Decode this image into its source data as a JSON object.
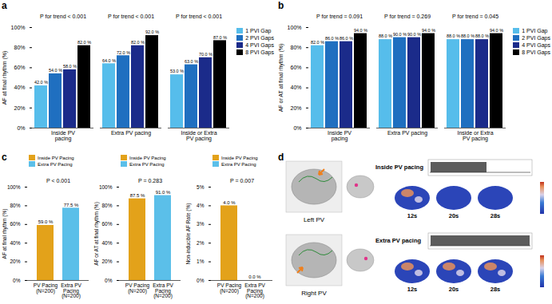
{
  "chart_data": [
    {
      "label": "a",
      "type": "bar",
      "categories": [
        "Inside PV pacing",
        "Extra PV pacing",
        "Inside or Extra PV pacing"
      ],
      "series": [
        {
          "name": "1 PVI Gap",
          "color": "#56bdeb",
          "values": [
            42,
            64,
            53
          ],
          "value_labels": [
            "42.0 %",
            "64.0 %",
            "53.0 %"
          ]
        },
        {
          "name": "2 PVI Gaps",
          "color": "#1f6fc0",
          "values": [
            54,
            72,
            63
          ],
          "value_labels": [
            "54.0 %",
            "72.0 %",
            "63.0 %"
          ]
        },
        {
          "name": "4 PVI Gaps",
          "color": "#1b2b8a",
          "values": [
            58,
            82,
            70
          ],
          "value_labels": [
            "58.0 %",
            "82.0 %",
            "70.0 %"
          ]
        },
        {
          "name": "8 PVI Gaps",
          "color": "#000000",
          "values": [
            82,
            92,
            87
          ],
          "value_labels": [
            "82.0 %",
            "92.0 %",
            "87.0 %"
          ]
        }
      ],
      "ylabel": "AF at final rhythm (%)",
      "ylim": [
        0,
        100
      ],
      "yticks": [
        {
          "value": 0,
          "label": "0%"
        },
        {
          "value": 20,
          "label": "20%"
        },
        {
          "value": 40,
          "label": "40%"
        },
        {
          "value": 60,
          "label": "60%"
        },
        {
          "value": 80,
          "label": "80%"
        },
        {
          "value": 100,
          "label": "100%"
        }
      ],
      "annotations": [
        "P for trend < 0.001",
        "P for trend < 0.001",
        "P for trend < 0.001"
      ],
      "data_labels": true,
      "legend": "top-right"
    },
    {
      "label": "b",
      "type": "bar",
      "categories": [
        "Inside PV pacing",
        "Extra PV pacing",
        "Inside or Extra PV pacing"
      ],
      "series": [
        {
          "name": "1 PVI Gap",
          "color": "#56bdeb",
          "values": [
            82,
            88,
            88
          ],
          "value_labels": [
            "82.0 %",
            "88.0 %",
            "88.0 %"
          ]
        },
        {
          "name": "2 PVI Gaps",
          "color": "#1f6fc0",
          "values": [
            86,
            90,
            88
          ],
          "value_labels": [
            "86.0 %",
            "90.0 %",
            "88.0 %"
          ]
        },
        {
          "name": "4 PVI Gaps",
          "color": "#1b2b8a",
          "values": [
            86,
            90,
            88
          ],
          "value_labels": [
            "86.0 %",
            "90.0 %",
            "88.0 %"
          ]
        },
        {
          "name": "8 PVI Gaps",
          "color": "#000000",
          "values": [
            94,
            94,
            94
          ],
          "value_labels": [
            "94.0 %",
            "94.0 %",
            "94.0 %"
          ]
        }
      ],
      "ylabel": "AF or AT at final rhythm (%)",
      "ylim": [
        0,
        100
      ],
      "yticks": [
        {
          "value": 0,
          "label": "0%"
        },
        {
          "value": 20,
          "label": "20%"
        },
        {
          "value": 40,
          "label": "40%"
        },
        {
          "value": 60,
          "label": "60%"
        },
        {
          "value": 80,
          "label": "80%"
        },
        {
          "value": 100,
          "label": "100%"
        }
      ],
      "annotations": [
        "P for trend = 0.091",
        "P for trend = 0.269",
        "P for trend = 0.045"
      ],
      "data_labels": true,
      "legend": "top-right"
    },
    {
      "label": "c",
      "type": "bar",
      "categories": [
        "PV Pacing (N=200)",
        "Extra PV Pacing (N=200)"
      ],
      "series": [
        {
          "name": "Inside PV Pacing",
          "color": "#e3a21a",
          "values": [
            59,
            null
          ],
          "value_labels": [
            "59.0 %",
            null
          ]
        },
        {
          "name": "Extra PV Pacing",
          "color": "#5bbfe9",
          "values": [
            null,
            77.5
          ],
          "value_labels": [
            null,
            "77.5 %"
          ]
        }
      ],
      "ylabel": "AF at final rhythm (%)",
      "ylim": [
        0,
        100
      ],
      "yticks": [
        {
          "value": 0,
          "label": "0%"
        },
        {
          "value": 20,
          "label": "20%"
        },
        {
          "value": 40,
          "label": "40%"
        },
        {
          "value": 60,
          "label": "60%"
        },
        {
          "value": 80,
          "label": "80%"
        },
        {
          "value": 100,
          "label": "100%"
        }
      ],
      "annotations": [
        "P < 0.001"
      ],
      "data_labels": true,
      "legend": "top"
    },
    {
      "type": "bar",
      "categories": [
        "PV Pacing (N=200)",
        "Extra PV Pacing (N=200)"
      ],
      "series": [
        {
          "name": "Inside PV Pacing",
          "color": "#e3a21a",
          "values": [
            87.5,
            null
          ],
          "value_labels": [
            "87.5 %",
            null
          ]
        },
        {
          "name": "Extra PV Pacing",
          "color": "#5bbfe9",
          "values": [
            null,
            91
          ],
          "value_labels": [
            null,
            "91.0 %"
          ]
        }
      ],
      "ylabel": "AF or AT at final rhythm (%)",
      "ylim": [
        0,
        100
      ],
      "yticks": [
        {
          "value": 0,
          "label": "0%"
        },
        {
          "value": 20,
          "label": "20%"
        },
        {
          "value": 40,
          "label": "40%"
        },
        {
          "value": 60,
          "label": "60%"
        },
        {
          "value": 80,
          "label": "80%"
        },
        {
          "value": 100,
          "label": "100%"
        }
      ],
      "annotations": [
        "P = 0.283"
      ],
      "data_labels": true,
      "legend": "top"
    },
    {
      "type": "bar",
      "categories": [
        "PV Pacing (N=200)",
        "Extra PV Pacing (N=200)"
      ],
      "series": [
        {
          "name": "Inside PV Pacing",
          "color": "#e3a21a",
          "values": [
            4,
            null
          ],
          "value_labels": [
            "4.0 %",
            null
          ]
        },
        {
          "name": "Extra PV Pacing",
          "color": "#5bbfe9",
          "values": [
            null,
            0
          ],
          "value_labels": [
            null,
            "0.0 %"
          ]
        }
      ],
      "ylabel": "Non-inducible AF Rate (%)",
      "ylim": [
        0,
        5
      ],
      "yticks": [
        {
          "value": 0,
          "label": "0%"
        },
        {
          "value": 1,
          "label": "1%"
        },
        {
          "value": 2,
          "label": "2%"
        },
        {
          "value": 3,
          "label": "3%"
        },
        {
          "value": 4,
          "label": "4%"
        },
        {
          "value": 5,
          "label": "5%"
        }
      ],
      "annotations": [
        "P = 0.007"
      ],
      "data_labels": true,
      "legend": "top"
    }
  ],
  "panel_d": {
    "label": "d",
    "rows": [
      {
        "name": "Left PV",
        "pacing": "Inside PV pacing",
        "times": [
          "12s",
          "20s",
          "28s"
        ]
      },
      {
        "name": "Right PV",
        "pacing": "Extra PV pacing",
        "times": [
          "12s",
          "20s",
          "28s"
        ]
      }
    ]
  }
}
